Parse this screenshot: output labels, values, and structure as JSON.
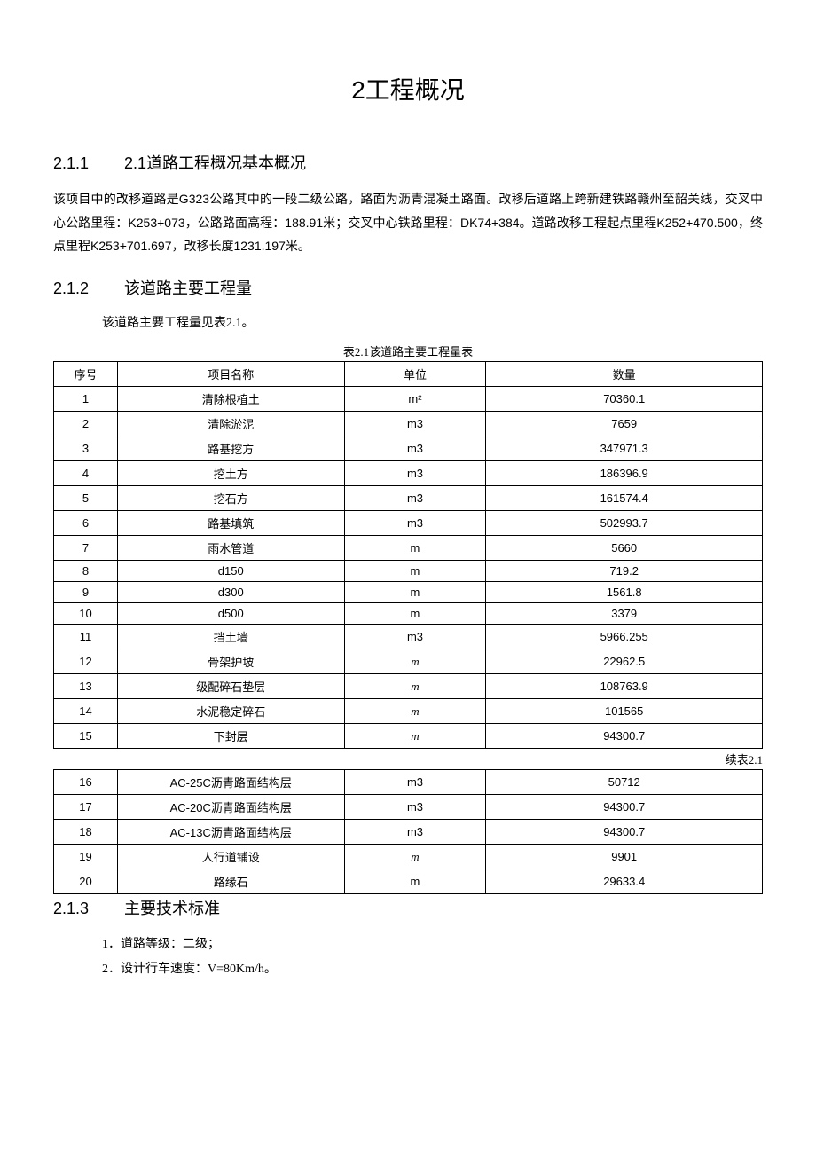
{
  "title": "2工程概况",
  "sections": {
    "s1": {
      "num": "2.1.1",
      "label": "2.1道路工程概况基本概况",
      "paragraph": "该项目中的改移道路是G323公路其中的一段二级公路，路面为沥青混凝土路面。改移后道路上跨新建铁路赣州至韶关线，交叉中心公路里程：K253+073，公路路面高程：188.91米；交叉中心铁路里程：DK74+384。道路改移工程起点里程K252+470.500，终点里程K253+701.697，改移长度1231.197米。"
    },
    "s2": {
      "num": "2.1.2",
      "label": "该道路主要工程量",
      "subline": "该道路主要工程量见表2.1。"
    },
    "s3": {
      "num": "2.1.3",
      "label": "主要技术标准"
    }
  },
  "table": {
    "caption": "表2.1该道路主要工程量表",
    "continue_label": "续表2.1",
    "headers": {
      "c1": "序号",
      "c2": "项目名称",
      "c3": "单位",
      "c4": "数量"
    },
    "rows_a": [
      {
        "n": "1",
        "name": "清除根植土",
        "unit": "m²",
        "qty": "70360.1",
        "unit_class": ""
      },
      {
        "n": "2",
        "name": "清除淤泥",
        "unit": "m3",
        "qty": "7659",
        "unit_class": ""
      },
      {
        "n": "3",
        "name": "路基挖方",
        "unit": "m3",
        "qty": "347971.3",
        "unit_class": ""
      },
      {
        "n": "4",
        "name": "挖土方",
        "unit": "m3",
        "qty": "186396.9",
        "unit_class": ""
      },
      {
        "n": "5",
        "name": "挖石方",
        "unit": "m3",
        "qty": "161574.4",
        "unit_class": ""
      },
      {
        "n": "6",
        "name": "路基填筑",
        "unit": "m3",
        "qty": "502993.7",
        "unit_class": ""
      },
      {
        "n": "7",
        "name": "雨水管道",
        "unit": "m",
        "qty": "5660",
        "unit_class": ""
      },
      {
        "n": "8",
        "name": "d150",
        "unit": "m",
        "qty": "719.2",
        "unit_class": ""
      },
      {
        "n": "9",
        "name": "d300",
        "unit": "m",
        "qty": "1561.8",
        "unit_class": ""
      },
      {
        "n": "10",
        "name": "d500",
        "unit": "m",
        "qty": "3379",
        "unit_class": ""
      },
      {
        "n": "11",
        "name": "挡土墙",
        "unit": "m3",
        "qty": "5966.255",
        "unit_class": ""
      },
      {
        "n": "12",
        "name": "骨架护坡",
        "unit": "m",
        "qty": "22962.5",
        "unit_class": "unit-italic"
      },
      {
        "n": "13",
        "name": "级配碎石垫层",
        "unit": "m",
        "qty": "108763.9",
        "unit_class": "unit-italic"
      },
      {
        "n": "14",
        "name": "水泥稳定碎石",
        "unit": "m",
        "qty": "101565",
        "unit_class": "unit-italic"
      },
      {
        "n": "15",
        "name": "下封层",
        "unit": "m",
        "qty": "94300.7",
        "unit_class": "unit-italic"
      }
    ],
    "rows_b": [
      {
        "n": "16",
        "name": "AC-25C沥青路面结构层",
        "unit": "m3",
        "qty": "50712",
        "unit_class": ""
      },
      {
        "n": "17",
        "name": "AC-20C沥青路面结构层",
        "unit": "m3",
        "qty": "94300.7",
        "unit_class": ""
      },
      {
        "n": "18",
        "name": "AC-13C沥青路面结构层",
        "unit": "m3",
        "qty": "94300.7",
        "unit_class": ""
      },
      {
        "n": "19",
        "name": "人行道铺设",
        "unit": "m",
        "qty": "9901",
        "unit_class": "unit-italic"
      },
      {
        "n": "20",
        "name": "路缘石",
        "unit": "m",
        "qty": "29633.4",
        "unit_class": ""
      }
    ]
  },
  "tech_standards": {
    "items": [
      "1．道路等级：二级；",
      "2．设计行车速度：V=80Km/h。"
    ]
  }
}
